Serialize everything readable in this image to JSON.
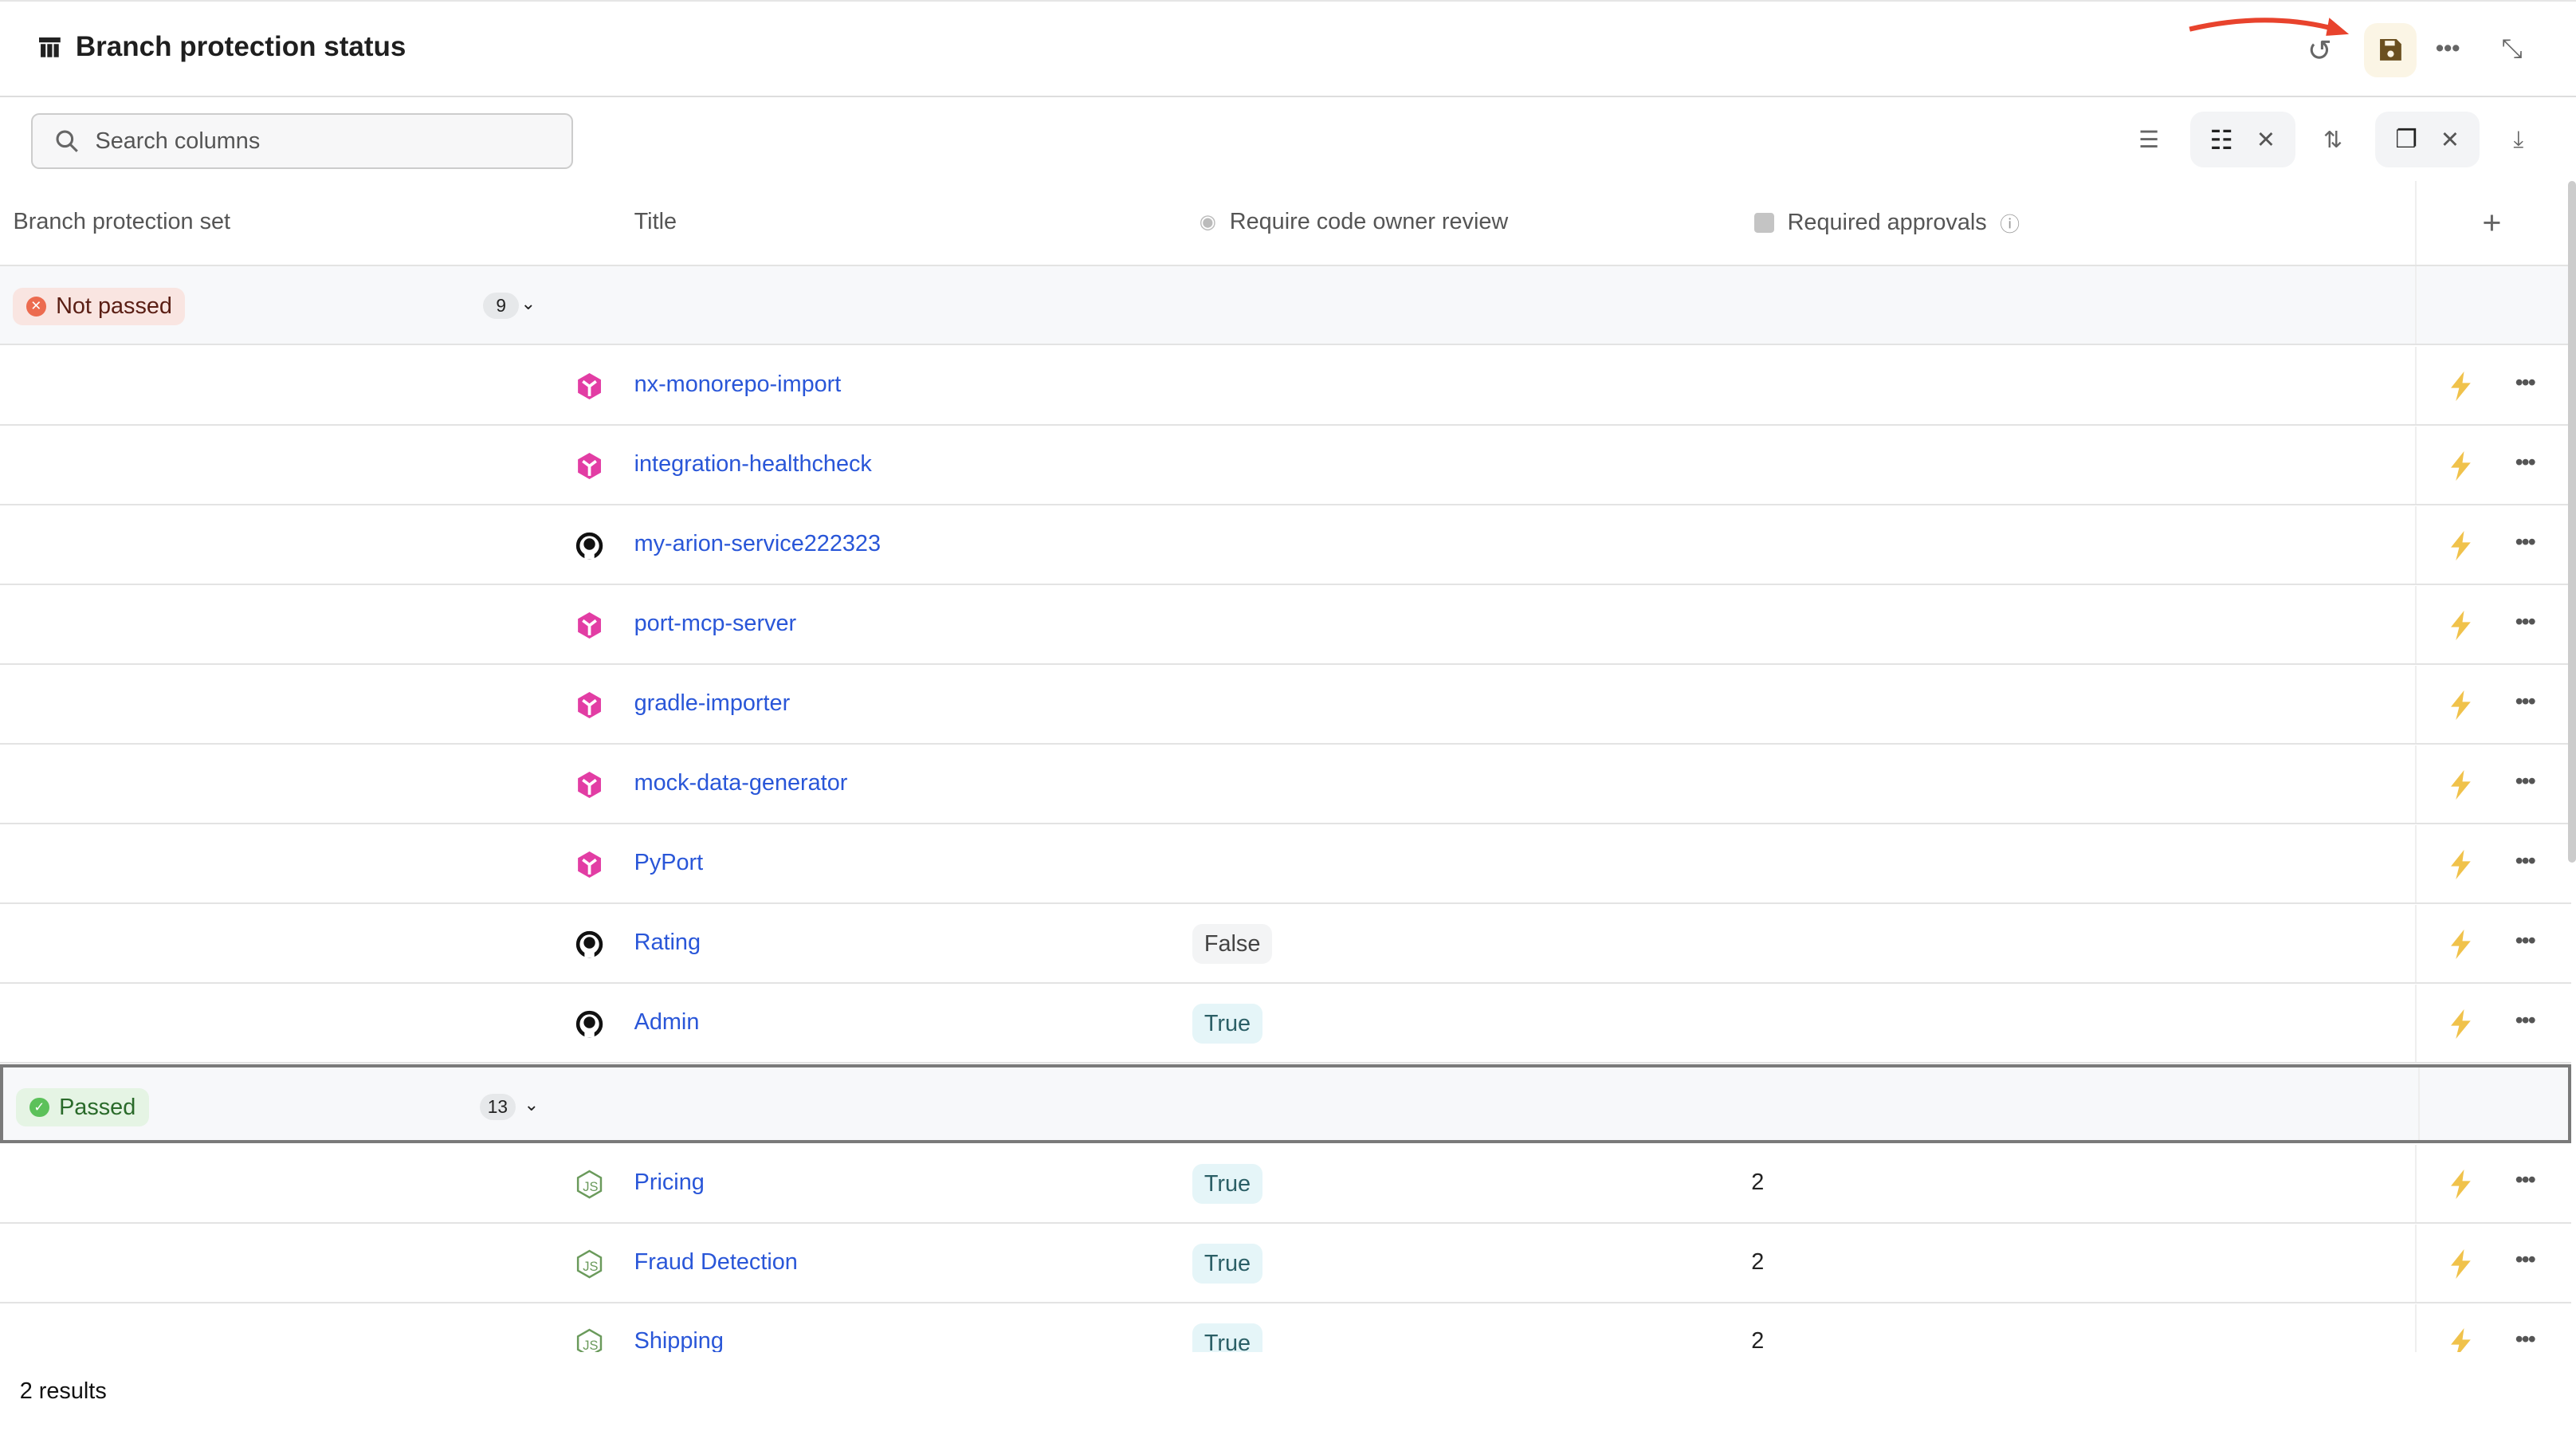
{
  "header": {
    "title": "Branch protection status",
    "icons": [
      "table-icon",
      "undo-icon",
      "save-icon",
      "more-icon",
      "collapse-icon"
    ]
  },
  "toolbar": {
    "search_placeholder": "Search columns",
    "icons": [
      "filter-icon",
      "group-by-icon",
      "close-icon",
      "sort-icon",
      "copy-icon",
      "close-icon",
      "download-icon"
    ]
  },
  "columns": [
    "Branch protection set",
    "Title",
    "Require code owner review",
    "Required approvals"
  ],
  "accent": {
    "link": "#2956d8",
    "save_bg": "#fbf5e5",
    "annotation_arrow": "#e8432d",
    "bolt": "#f0c24b"
  },
  "groups": [
    {
      "label": "Not passed",
      "count": "9",
      "status": "failed",
      "rows": [
        {
          "title": "nx-monorepo-import",
          "icon": "port-cube-icon",
          "code_owner": "",
          "approvals": ""
        },
        {
          "title": "integration-healthcheck",
          "icon": "port-cube-icon",
          "code_owner": "",
          "approvals": ""
        },
        {
          "title": "my-arion-service222323",
          "icon": "github-icon",
          "code_owner": "",
          "approvals": ""
        },
        {
          "title": "port-mcp-server",
          "icon": "port-cube-icon",
          "code_owner": "",
          "approvals": ""
        },
        {
          "title": "gradle-importer",
          "icon": "port-cube-icon",
          "code_owner": "",
          "approvals": ""
        },
        {
          "title": "mock-data-generator",
          "icon": "port-cube-icon",
          "code_owner": "",
          "approvals": ""
        },
        {
          "title": "PyPort",
          "icon": "port-cube-icon",
          "code_owner": "",
          "approvals": ""
        },
        {
          "title": "Rating",
          "icon": "github-icon",
          "code_owner": "False",
          "approvals": ""
        },
        {
          "title": "Admin",
          "icon": "github-icon",
          "code_owner": "True",
          "approvals": ""
        }
      ]
    },
    {
      "label": "Passed",
      "count": "13",
      "status": "passed",
      "rows": [
        {
          "title": "Pricing",
          "icon": "nodejs-icon",
          "code_owner": "True",
          "approvals": "2"
        },
        {
          "title": "Fraud Detection",
          "icon": "nodejs-icon",
          "code_owner": "True",
          "approvals": "2"
        },
        {
          "title": "Shipping",
          "icon": "nodejs-icon",
          "code_owner": "True",
          "approvals": "2"
        }
      ]
    }
  ],
  "footer": {
    "results": "2 results"
  }
}
